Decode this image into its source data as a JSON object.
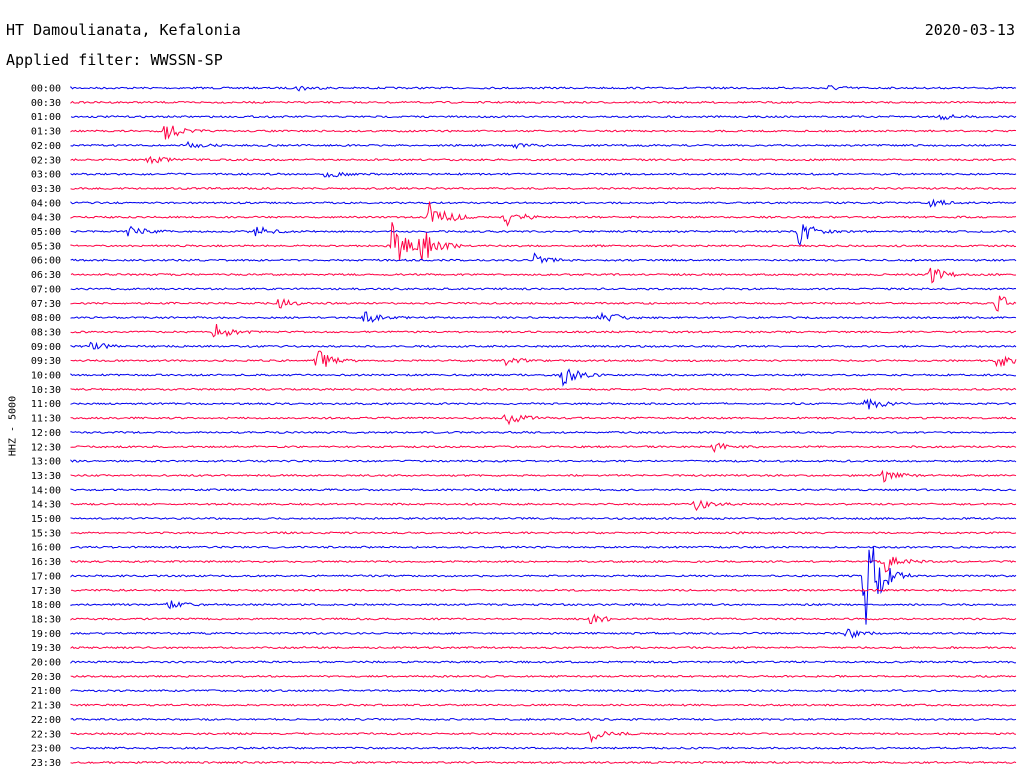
{
  "header": {
    "station": "HT Damoulianata, Kefalonia",
    "date": "2020-03-13",
    "filter": "Applied filter: WWSSN-SP",
    "channel_label": "HHZ - 5000"
  },
  "colors": {
    "trace_a": "#0000ee",
    "trace_b": "#ff0044",
    "text": "#000000"
  },
  "chart_data": {
    "type": "helicorder",
    "ylabel": "HHZ - 5000",
    "rows": [
      "00:00",
      "00:30",
      "01:00",
      "01:30",
      "02:00",
      "02:30",
      "03:00",
      "03:30",
      "04:00",
      "04:30",
      "05:00",
      "05:30",
      "06:00",
      "06:30",
      "07:00",
      "07:30",
      "08:00",
      "08:30",
      "09:00",
      "09:30",
      "10:00",
      "10:30",
      "11:00",
      "11:30",
      "12:00",
      "12:30",
      "13:00",
      "13:30",
      "14:00",
      "14:30",
      "15:00",
      "15:30",
      "16:00",
      "16:30",
      "17:00",
      "17:30",
      "18:00",
      "18:30",
      "19:00",
      "19:30",
      "20:00",
      "20:30",
      "21:00",
      "21:30",
      "22:00",
      "22:30",
      "23:00",
      "23:30"
    ],
    "row_colors": "alternate blue/red",
    "events": [
      {
        "row": 0,
        "pos": 0.24,
        "amp": 3
      },
      {
        "row": 0,
        "pos": 0.8,
        "amp": 3
      },
      {
        "row": 2,
        "pos": 0.92,
        "amp": 3
      },
      {
        "row": 3,
        "pos": 0.1,
        "amp": 10
      },
      {
        "row": 4,
        "pos": 0.12,
        "amp": 4
      },
      {
        "row": 4,
        "pos": 0.47,
        "amp": 3
      },
      {
        "row": 5,
        "pos": 0.08,
        "amp": 6
      },
      {
        "row": 6,
        "pos": 0.27,
        "amp": 4
      },
      {
        "row": 8,
        "pos": 0.91,
        "amp": 4
      },
      {
        "row": 9,
        "pos": 0.38,
        "amp": 22
      },
      {
        "row": 9,
        "pos": 0.46,
        "amp": 10
      },
      {
        "row": 10,
        "pos": 0.06,
        "amp": 8
      },
      {
        "row": 10,
        "pos": 0.19,
        "amp": 9
      },
      {
        "row": 10,
        "pos": 0.77,
        "amp": 14
      },
      {
        "row": 11,
        "pos": 0.34,
        "amp": 26
      },
      {
        "row": 11,
        "pos": 0.37,
        "amp": 20
      },
      {
        "row": 12,
        "pos": 0.49,
        "amp": 6
      },
      {
        "row": 13,
        "pos": 0.91,
        "amp": 8
      },
      {
        "row": 15,
        "pos": 0.22,
        "amp": 6
      },
      {
        "row": 15,
        "pos": 0.98,
        "amp": 10
      },
      {
        "row": 16,
        "pos": 0.31,
        "amp": 8
      },
      {
        "row": 16,
        "pos": 0.56,
        "amp": 9
      },
      {
        "row": 17,
        "pos": 0.15,
        "amp": 10
      },
      {
        "row": 18,
        "pos": 0.02,
        "amp": 6
      },
      {
        "row": 19,
        "pos": 0.26,
        "amp": 12
      },
      {
        "row": 19,
        "pos": 0.46,
        "amp": 5
      },
      {
        "row": 19,
        "pos": 0.98,
        "amp": 8
      },
      {
        "row": 20,
        "pos": 0.52,
        "amp": 12
      },
      {
        "row": 22,
        "pos": 0.84,
        "amp": 8
      },
      {
        "row": 23,
        "pos": 0.46,
        "amp": 8
      },
      {
        "row": 25,
        "pos": 0.68,
        "amp": 5
      },
      {
        "row": 27,
        "pos": 0.86,
        "amp": 6
      },
      {
        "row": 29,
        "pos": 0.66,
        "amp": 7
      },
      {
        "row": 33,
        "pos": 0.86,
        "amp": 12
      },
      {
        "row": 34,
        "pos": 0.84,
        "amp": 60
      },
      {
        "row": 36,
        "pos": 0.1,
        "amp": 6
      },
      {
        "row": 37,
        "pos": 0.55,
        "amp": 5
      },
      {
        "row": 38,
        "pos": 0.82,
        "amp": 6
      },
      {
        "row": 45,
        "pos": 0.55,
        "amp": 8
      }
    ]
  }
}
